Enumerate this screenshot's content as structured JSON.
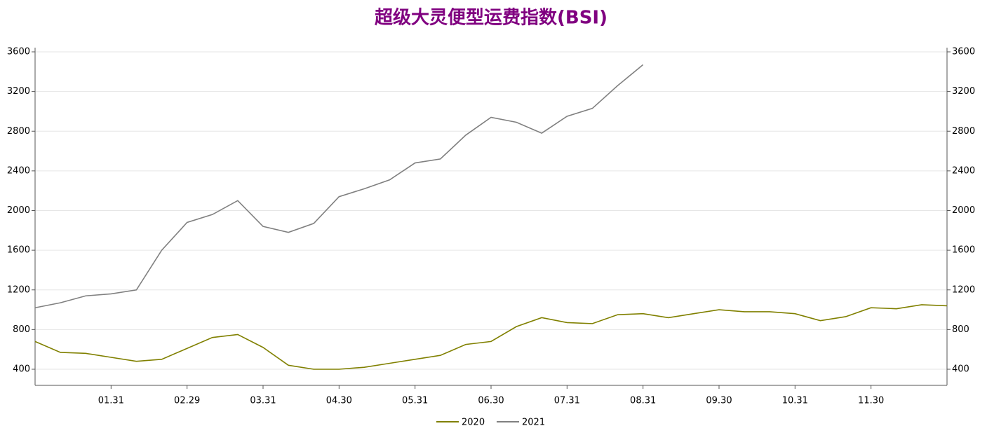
{
  "chart_data": {
    "type": "line",
    "title": "超级大灵便型运费指数(BSI)",
    "categories": [
      null,
      null,
      null,
      "01.31",
      null,
      null,
      "02.29",
      null,
      null,
      "03.31",
      null,
      null,
      "04.30",
      null,
      null,
      "05.31",
      null,
      null,
      "06.30",
      null,
      null,
      "07.31",
      null,
      null,
      "08.31",
      null,
      null,
      "09.30",
      null,
      null,
      "10.31",
      null,
      null,
      "11.30",
      null,
      null,
      null
    ],
    "series": [
      {
        "name": "2020",
        "color": "#808000",
        "values": [
          680,
          570,
          560,
          520,
          480,
          500,
          610,
          720,
          750,
          620,
          440,
          400,
          400,
          420,
          460,
          500,
          540,
          650,
          680,
          830,
          920,
          870,
          860,
          950,
          960,
          920,
          960,
          1000,
          980,
          980,
          960,
          890,
          930,
          1020,
          1010,
          1050,
          1040
        ]
      },
      {
        "name": "2021",
        "color": "#808080",
        "values": [
          1020,
          1070,
          1140,
          1160,
          1200,
          1600,
          1880,
          1960,
          2100,
          1840,
          1780,
          1870,
          2140,
          2220,
          2310,
          2480,
          2520,
          2760,
          2940,
          2890,
          2780,
          2950,
          3030,
          3260,
          3470,
          null,
          null,
          null,
          null,
          null,
          null,
          null,
          null,
          null,
          null,
          null,
          null
        ]
      }
    ],
    "ylim": [
      400,
      3600
    ],
    "yticks": [
      400,
      800,
      1200,
      1600,
      2000,
      2400,
      2800,
      3200,
      3600
    ],
    "y2lim": [
      400,
      3600
    ],
    "y2ticks": [
      400,
      800,
      1200,
      1600,
      2000,
      2400,
      2800,
      3200,
      3600
    ],
    "grid": true,
    "legend": "bottom"
  }
}
